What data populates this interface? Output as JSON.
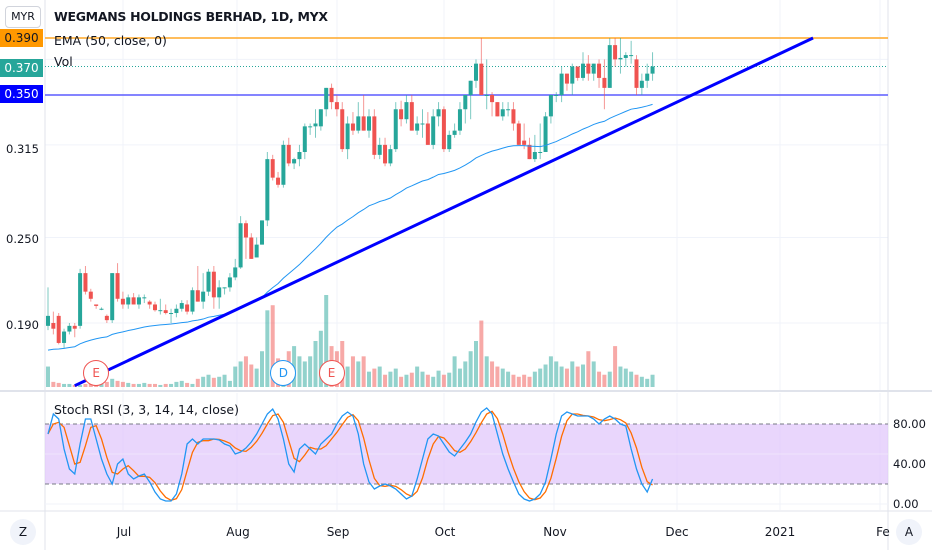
{
  "header": {
    "currency_button": "MYR",
    "title": "WEGMANS HOLDINGS BERHAD, 1D, MYX",
    "ema_legend": "EMA (50, close, 0)",
    "vol_legend": "Vol",
    "stoch_legend": "Stoch RSI (3, 3, 14, 14, close)"
  },
  "price_axis": {
    "ticks": [
      "0.315",
      "0.250",
      "0.190"
    ],
    "badges": [
      {
        "label": "0.390",
        "color": "#ff9800",
        "text_color": "#131722"
      },
      {
        "label": "0.370",
        "color": "#26a69a",
        "text_color": "#ffffff"
      },
      {
        "label": "0.350",
        "color": "#0000ff",
        "text_color": "#ffffff"
      }
    ]
  },
  "rsi_axis": {
    "ticks": [
      "80.00",
      "40.00",
      "0.00"
    ]
  },
  "time_axis": {
    "labels": [
      "Jul",
      "Aug",
      "Sep",
      "Oct",
      "Nov",
      "Dec",
      "2021",
      "Fe"
    ]
  },
  "buttons": {
    "zoom": "Z",
    "auto": "A"
  },
  "events": [
    {
      "label": "E",
      "type": "earnings",
      "color": "#ef5350"
    },
    {
      "label": "D",
      "type": "dividend",
      "color": "#2196f3"
    },
    {
      "label": "E",
      "type": "earnings",
      "color": "#ef5350"
    }
  ],
  "colors": {
    "up": "#26a69a",
    "down": "#ef5350",
    "ema": "#2196f3",
    "trendline": "#0000ff",
    "resistance": "#ffa726",
    "support": "#5c5cff",
    "last_price": "#26a69a",
    "stoch_k": "#2196f3",
    "stoch_d": "#ff6d00",
    "stoch_band": "#e1c8fb"
  },
  "chart_data": [
    {
      "type": "candlestick",
      "title": "WEGMANS HOLDINGS BERHAD, 1D, MYX",
      "ylim": [
        0.145,
        0.395
      ],
      "grid": true,
      "horizontal_lines": [
        {
          "price": 0.39,
          "style": "solid",
          "color": "#ffa726"
        },
        {
          "price": 0.37,
          "style": "dotted",
          "color": "#26a69a"
        },
        {
          "price": 0.35,
          "style": "solid",
          "color": "#5c5cff"
        }
      ],
      "trendline": {
        "start": {
          "bar": 5,
          "price": 0.146
        },
        "end": {
          "bar": 143,
          "price": 0.39
        }
      },
      "ohlc": [
        [
          0.188,
          0.215,
          0.185,
          0.195
        ],
        [
          0.19,
          0.198,
          0.182,
          0.186
        ],
        [
          0.195,
          0.197,
          0.175,
          0.176
        ],
        [
          0.176,
          0.186,
          0.172,
          0.184
        ],
        [
          0.184,
          0.19,
          0.182,
          0.188
        ],
        [
          0.188,
          0.19,
          0.18,
          0.186
        ],
        [
          0.188,
          0.228,
          0.186,
          0.225
        ],
        [
          0.225,
          0.23,
          0.21,
          0.212
        ],
        [
          0.212,
          0.214,
          0.205,
          0.207
        ],
        [
          0.203,
          0.203,
          0.2,
          0.202
        ],
        [
          0.2,
          0.201,
          0.199,
          0.2
        ],
        [
          0.195,
          0.196,
          0.19,
          0.192
        ],
        [
          0.192,
          0.225,
          0.19,
          0.225
        ],
        [
          0.225,
          0.232,
          0.205,
          0.207
        ],
        [
          0.207,
          0.212,
          0.2,
          0.203
        ],
        [
          0.203,
          0.21,
          0.2,
          0.208
        ],
        [
          0.208,
          0.211,
          0.203,
          0.203
        ],
        [
          0.203,
          0.21,
          0.2,
          0.208
        ],
        [
          0.208,
          0.21,
          0.204,
          0.208
        ],
        [
          0.205,
          0.206,
          0.2,
          0.203
        ],
        [
          0.203,
          0.205,
          0.198,
          0.199
        ],
        [
          0.199,
          0.207,
          0.196,
          0.199
        ],
        [
          0.199,
          0.203,
          0.196,
          0.197
        ],
        [
          0.197,
          0.2,
          0.19,
          0.197
        ],
        [
          0.197,
          0.203,
          0.194,
          0.2
        ],
        [
          0.2,
          0.206,
          0.198,
          0.204
        ],
        [
          0.203,
          0.206,
          0.196,
          0.198
        ],
        [
          0.198,
          0.215,
          0.196,
          0.213
        ],
        [
          0.213,
          0.23,
          0.205,
          0.205
        ],
        [
          0.205,
          0.225,
          0.2,
          0.212
        ],
        [
          0.212,
          0.228,
          0.209,
          0.226
        ],
        [
          0.226,
          0.23,
          0.2,
          0.208
        ],
        [
          0.208,
          0.22,
          0.2,
          0.215
        ],
        [
          0.215,
          0.215,
          0.21,
          0.215
        ],
        [
          0.215,
          0.225,
          0.212,
          0.222
        ],
        [
          0.222,
          0.235,
          0.22,
          0.229
        ],
        [
          0.229,
          0.265,
          0.228,
          0.26
        ],
        [
          0.26,
          0.262,
          0.235,
          0.25
        ],
        [
          0.25,
          0.253,
          0.235,
          0.235
        ],
        [
          0.236,
          0.25,
          0.236,
          0.245
        ],
        [
          0.245,
          0.262,
          0.245,
          0.262
        ],
        [
          0.262,
          0.31,
          0.258,
          0.305
        ],
        [
          0.305,
          0.308,
          0.29,
          0.292
        ],
        [
          0.292,
          0.296,
          0.285,
          0.287
        ],
        [
          0.287,
          0.318,
          0.285,
          0.315
        ],
        [
          0.315,
          0.32,
          0.3,
          0.302
        ],
        [
          0.302,
          0.306,
          0.298,
          0.305
        ],
        [
          0.305,
          0.315,
          0.3,
          0.31
        ],
        [
          0.31,
          0.33,
          0.305,
          0.328
        ],
        [
          0.328,
          0.33,
          0.322,
          0.328
        ],
        [
          0.328,
          0.34,
          0.32,
          0.33
        ],
        [
          0.328,
          0.34,
          0.325,
          0.34
        ],
        [
          0.34,
          0.355,
          0.335,
          0.355
        ],
        [
          0.355,
          0.358,
          0.34,
          0.345
        ],
        [
          0.345,
          0.35,
          0.335,
          0.34
        ],
        [
          0.34,
          0.345,
          0.31,
          0.312
        ],
        [
          0.312,
          0.335,
          0.305,
          0.33
        ],
        [
          0.33,
          0.338,
          0.322,
          0.325
        ],
        [
          0.325,
          0.345,
          0.323,
          0.335
        ],
        [
          0.335,
          0.35,
          0.325,
          0.325
        ],
        [
          0.325,
          0.34,
          0.32,
          0.335
        ],
        [
          0.335,
          0.34,
          0.305,
          0.308
        ],
        [
          0.308,
          0.32,
          0.305,
          0.315
        ],
        [
          0.315,
          0.32,
          0.3,
          0.302
        ],
        [
          0.302,
          0.315,
          0.3,
          0.312
        ],
        [
          0.312,
          0.345,
          0.31,
          0.34
        ],
        [
          0.34,
          0.346,
          0.328,
          0.333
        ],
        [
          0.333,
          0.35,
          0.33,
          0.345
        ],
        [
          0.345,
          0.35,
          0.325,
          0.325
        ],
        [
          0.325,
          0.335,
          0.322,
          0.33
        ],
        [
          0.33,
          0.34,
          0.32,
          0.33
        ],
        [
          0.33,
          0.338,
          0.315,
          0.315
        ],
        [
          0.315,
          0.34,
          0.312,
          0.335
        ],
        [
          0.335,
          0.345,
          0.328,
          0.34
        ],
        [
          0.34,
          0.342,
          0.31,
          0.312
        ],
        [
          0.312,
          0.325,
          0.31,
          0.322
        ],
        [
          0.322,
          0.33,
          0.32,
          0.325
        ],
        [
          0.325,
          0.345,
          0.322,
          0.34
        ],
        [
          0.34,
          0.35,
          0.33,
          0.35
        ],
        [
          0.35,
          0.36,
          0.333,
          0.36
        ],
        [
          0.36,
          0.375,
          0.355,
          0.372
        ],
        [
          0.372,
          0.39,
          0.35,
          0.35
        ],
        [
          0.35,
          0.375,
          0.34,
          0.35
        ],
        [
          0.35,
          0.352,
          0.335,
          0.345
        ],
        [
          0.345,
          0.345,
          0.335,
          0.335
        ],
        [
          0.335,
          0.345,
          0.332,
          0.34
        ],
        [
          0.34,
          0.345,
          0.335,
          0.34
        ],
        [
          0.34,
          0.345,
          0.325,
          0.33
        ],
        [
          0.33,
          0.332,
          0.315,
          0.315
        ],
        [
          0.318,
          0.33,
          0.312,
          0.315
        ],
        [
          0.315,
          0.32,
          0.305,
          0.305
        ],
        [
          0.305,
          0.322,
          0.303,
          0.31
        ],
        [
          0.31,
          0.33,
          0.305,
          0.31
        ],
        [
          0.31,
          0.338,
          0.31,
          0.335
        ],
        [
          0.335,
          0.35,
          0.33,
          0.35
        ],
        [
          0.35,
          0.352,
          0.345,
          0.35
        ],
        [
          0.35,
          0.37,
          0.345,
          0.365
        ],
        [
          0.365,
          0.365,
          0.353,
          0.358
        ],
        [
          0.358,
          0.372,
          0.35,
          0.37
        ],
        [
          0.37,
          0.37,
          0.36,
          0.362
        ],
        [
          0.362,
          0.38,
          0.36,
          0.372
        ],
        [
          0.372,
          0.378,
          0.36,
          0.365
        ],
        [
          0.365,
          0.372,
          0.36,
          0.372
        ],
        [
          0.372,
          0.375,
          0.355,
          0.362
        ],
        [
          0.362,
          0.375,
          0.34,
          0.355
        ],
        [
          0.355,
          0.39,
          0.355,
          0.385
        ],
        [
          0.385,
          0.39,
          0.37,
          0.375
        ],
        [
          0.375,
          0.39,
          0.365,
          0.376
        ],
        [
          0.376,
          0.38,
          0.37,
          0.378
        ],
        [
          0.378,
          0.388,
          0.372,
          0.378
        ],
        [
          0.375,
          0.378,
          0.35,
          0.355
        ],
        [
          0.355,
          0.365,
          0.35,
          0.36
        ],
        [
          0.36,
          0.372,
          0.355,
          0.365
        ],
        [
          0.365,
          0.38,
          0.36,
          0.37
        ]
      ],
      "volume": [
        20,
        5,
        4,
        3,
        3,
        2,
        2,
        3,
        4,
        2,
        3,
        5,
        8,
        6,
        5,
        4,
        3,
        3,
        4,
        3,
        3,
        2,
        3,
        3,
        5,
        6,
        4,
        3,
        8,
        10,
        12,
        9,
        10,
        12,
        6,
        20,
        25,
        30,
        22,
        18,
        35,
        75,
        80,
        28,
        22,
        35,
        40,
        30,
        25,
        30,
        45,
        55,
        90,
        40,
        35,
        45,
        20,
        30,
        25,
        30,
        15,
        18,
        20,
        12,
        15,
        18,
        10,
        12,
        14,
        20,
        15,
        12,
        10,
        16,
        12,
        14,
        30,
        18,
        25,
        35,
        45,
        65,
        30,
        25,
        20,
        18,
        15,
        12,
        10,
        12,
        10,
        15,
        18,
        22,
        30,
        25,
        20,
        18,
        25,
        20,
        22,
        35,
        25,
        15,
        12,
        15,
        40,
        20,
        18,
        15,
        12,
        10,
        8,
        12
      ],
      "event_bars": [
        9,
        44,
        53
      ]
    },
    {
      "type": "line",
      "title": "Stoch RSI (3, 3, 14, 14, close)",
      "ylim": [
        0,
        100
      ],
      "bands": [
        20,
        80
      ],
      "k": [
        70,
        90,
        85,
        55,
        35,
        30,
        60,
        85,
        85,
        65,
        45,
        30,
        20,
        40,
        45,
        30,
        25,
        28,
        30,
        22,
        12,
        5,
        3,
        3,
        10,
        30,
        60,
        65,
        60,
        65,
        65,
        65,
        64,
        60,
        58,
        50,
        52,
        56,
        62,
        70,
        80,
        90,
        95,
        85,
        65,
        40,
        32,
        55,
        60,
        55,
        50,
        60,
        65,
        70,
        80,
        88,
        92,
        88,
        70,
        40,
        22,
        15,
        18,
        20,
        18,
        15,
        10,
        5,
        8,
        25,
        45,
        65,
        70,
        68,
        60,
        52,
        48,
        55,
        62,
        70,
        82,
        92,
        96,
        90,
        70,
        50,
        35,
        22,
        10,
        5,
        3,
        5,
        10,
        22,
        45,
        70,
        88,
        92,
        90,
        88,
        88,
        88,
        85,
        80,
        85,
        88,
        85,
        80,
        78,
        55,
        35,
        20,
        12,
        25
      ]
    }
  ]
}
